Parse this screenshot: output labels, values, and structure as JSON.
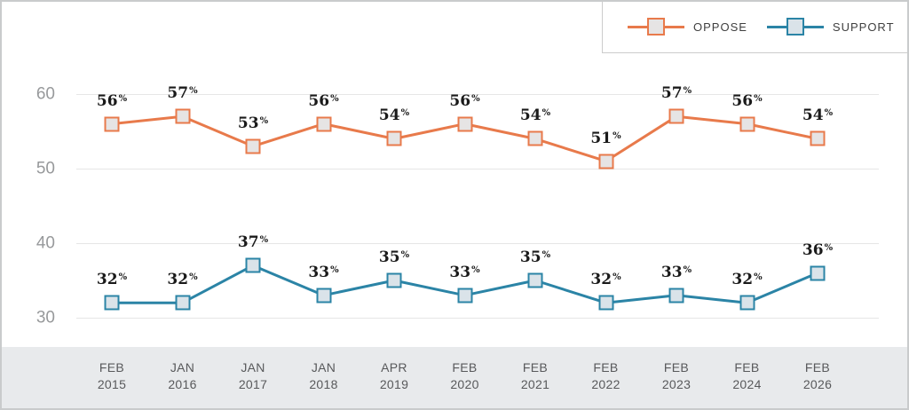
{
  "percent_suffix": "%",
  "legend": {
    "items": [
      {
        "id": "oppose",
        "label": "OPPOSE"
      },
      {
        "id": "support",
        "label": "SUPPORT"
      }
    ]
  },
  "chart_data": {
    "type": "line",
    "categories": [
      "FEB 2015",
      "JAN 2016",
      "JAN 2017",
      "JAN 2018",
      "APR 2019",
      "FEB 2020",
      "FEB 2021",
      "FEB 2022",
      "FEB 2023",
      "FEB 2024",
      "FEB 2026"
    ],
    "series": [
      {
        "name": "OPPOSE",
        "color": "#E87A4B",
        "marker_fill": "#E6E4E4",
        "values": [
          56,
          57,
          53,
          56,
          54,
          56,
          54,
          51,
          57,
          56,
          54
        ]
      },
      {
        "name": "SUPPORT",
        "color": "#2B84A6",
        "marker_fill": "#DAE3E9",
        "values": [
          32,
          32,
          37,
          33,
          35,
          33,
          35,
          32,
          33,
          32,
          36
        ]
      }
    ],
    "title": "",
    "xlabel": "",
    "ylabel": "",
    "yticks": [
      60,
      50,
      40,
      30
    ],
    "ylim": [
      27,
      63
    ],
    "grid": true,
    "legend_position": "top-right",
    "value_labels": true,
    "unit": "%"
  },
  "colors": {
    "grid": "#E6E6E6",
    "ytick_text": "#97999B",
    "xtick_text": "#58595B",
    "band_bg": "#E8EAEC",
    "border": "#C9CBCC",
    "value_label": "#1A1A1A",
    "legend_border": "#CCCCCC"
  }
}
